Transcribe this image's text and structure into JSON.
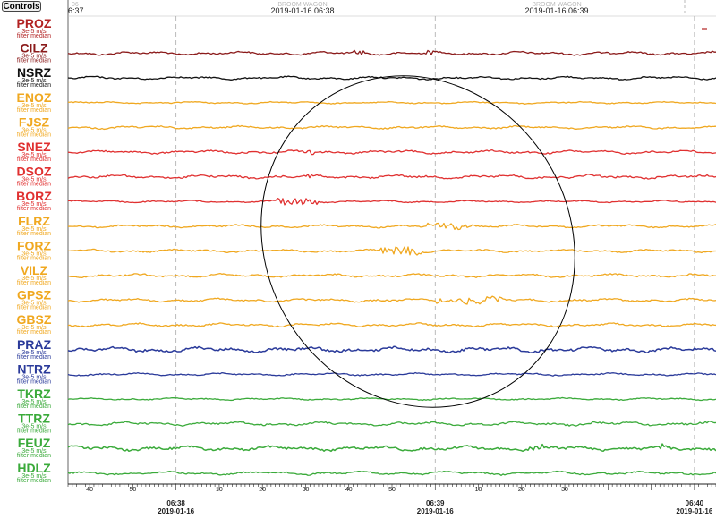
{
  "controls_label": "Controls",
  "header": {
    "left_faint": "06",
    "left_time": "6:37",
    "mid_faint": "BROOM WAGON",
    "mid_time": "2019-01-16 06:38",
    "right_faint": "BROOM WAGON",
    "right_time": "2019-01-16 06:39"
  },
  "sub_label_lines": [
    "3e-5 m/s",
    "filter median"
  ],
  "colors": {
    "PROZ": "#b22222",
    "CILZ": "#8b1a1a",
    "NSRZ": "#111111",
    "orange": "#f0a820",
    "red": "#e03030",
    "blue": "#2a3a9a",
    "green": "#3aaa3a",
    "annotation_ellipse": "#000000",
    "gridline": "#aaaaaa"
  },
  "chart_data": {
    "type": "line",
    "title": "",
    "x_axis": {
      "minor_ticks": [
        {
          "label": "40",
          "time": "06:37:40"
        },
        {
          "label": "50",
          "time": "06:37:50"
        },
        {
          "label": "10",
          "time": "06:38:10"
        },
        {
          "label": "20",
          "time": "06:38:20"
        },
        {
          "label": "30",
          "time": "06:38:30"
        },
        {
          "label": "40",
          "time": "06:38:40"
        },
        {
          "label": "50",
          "time": "06:38:50"
        },
        {
          "label": "10",
          "time": "06:39:10"
        },
        {
          "label": "20",
          "time": "06:39:20"
        },
        {
          "label": "30",
          "time": "06:39:30"
        }
      ],
      "major_ticks": [
        {
          "time_label": "06:38",
          "date_label": "2019-01-16"
        },
        {
          "time_label": "06:39",
          "date_label": "2019-01-16"
        },
        {
          "time_label": "06:40",
          "date_label": "2019-01-16"
        }
      ],
      "range": [
        "06:37:35",
        "06:40:05"
      ],
      "grid": "dashed vertical lines at minute marks"
    },
    "series": [
      {
        "name": "PROZ",
        "color_key": "PROZ",
        "has_trace": false
      },
      {
        "name": "CILZ",
        "color_key": "CILZ",
        "has_trace": true
      },
      {
        "name": "NSRZ",
        "color_key": "NSRZ",
        "has_trace": true
      },
      {
        "name": "ENOZ",
        "color_key": "orange",
        "has_trace": true
      },
      {
        "name": "FJSZ",
        "color_key": "orange",
        "has_trace": true
      },
      {
        "name": "SNEZ",
        "color_key": "red",
        "has_trace": true
      },
      {
        "name": "DSOZ",
        "color_key": "red",
        "has_trace": true
      },
      {
        "name": "BORZ",
        "color_key": "red",
        "has_trace": true
      },
      {
        "name": "FLRZ",
        "color_key": "orange",
        "has_trace": true
      },
      {
        "name": "FORZ",
        "color_key": "orange",
        "has_trace": true
      },
      {
        "name": "VILZ",
        "color_key": "orange",
        "has_trace": true
      },
      {
        "name": "GPSZ",
        "color_key": "orange",
        "has_trace": true
      },
      {
        "name": "GBSZ",
        "color_key": "orange",
        "has_trace": true
      },
      {
        "name": "PRAZ",
        "color_key": "blue",
        "has_trace": true
      },
      {
        "name": "NTRZ",
        "color_key": "blue",
        "has_trace": true
      },
      {
        "name": "TKRZ",
        "color_key": "green",
        "has_trace": true
      },
      {
        "name": "TTRZ",
        "color_key": "green",
        "has_trace": true
      },
      {
        "name": "FEUZ",
        "color_key": "green",
        "has_trace": true
      },
      {
        "name": "HDLZ",
        "color_key": "green",
        "has_trace": true
      }
    ],
    "annotation": "ellipse"
  }
}
